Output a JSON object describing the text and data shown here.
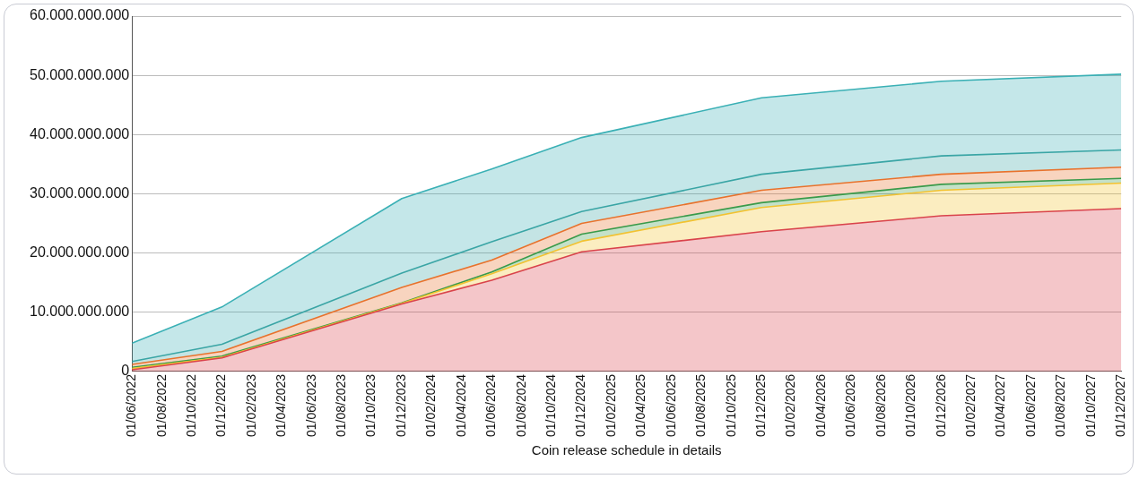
{
  "chart_data": {
    "type": "area",
    "xlabel": "Coin release schedule in details",
    "x": [
      "2022-06",
      "2022-12",
      "2023-12",
      "2024-06",
      "2024-12",
      "2025-12",
      "2026-12",
      "2027-12"
    ],
    "series": [
      {
        "color": "#d9434b",
        "values": [
          300000000,
          2300000000,
          11400000000,
          15400000000,
          20200000000,
          23600000000,
          26300000000,
          27500000000
        ]
      },
      {
        "color": "#f2c230",
        "values": [
          500000000,
          2400000000,
          11500000000,
          16500000000,
          22000000000,
          27700000000,
          30600000000,
          31800000000
        ]
      },
      {
        "color": "#3a9a4a",
        "values": [
          700000000,
          2600000000,
          11600000000,
          16800000000,
          23200000000,
          28500000000,
          31600000000,
          32600000000
        ]
      },
      {
        "color": "#e8722c",
        "values": [
          1200000000,
          3400000000,
          14200000000,
          18800000000,
          25000000000,
          30600000000,
          33300000000,
          34500000000
        ]
      },
      {
        "color": "#3aa5a5",
        "values": [
          1700000000,
          4600000000,
          16600000000,
          21900000000,
          27000000000,
          33300000000,
          36400000000,
          37400000000
        ]
      },
      {
        "color": "#3ab0b5",
        "values": [
          4800000000,
          10900000000,
          29200000000,
          34200000000,
          39500000000,
          46200000000,
          49000000000,
          50200000000
        ]
      }
    ],
    "xlim": [
      "2022-06",
      "2027-12"
    ],
    "xticks": [
      {
        "value": "2022-06",
        "label": "01/06/2022"
      },
      {
        "value": "2022-08",
        "label": "01/08/2022"
      },
      {
        "value": "2022-10",
        "label": "01/10/2022"
      },
      {
        "value": "2022-12",
        "label": "01/12/2022"
      },
      {
        "value": "2023-02",
        "label": "01/02/2023"
      },
      {
        "value": "2023-04",
        "label": "01/04/2023"
      },
      {
        "value": "2023-06",
        "label": "01/06/2023"
      },
      {
        "value": "2023-08",
        "label": "01/08/2023"
      },
      {
        "value": "2023-10",
        "label": "01/10/2023"
      },
      {
        "value": "2023-12",
        "label": "01/12/2023"
      },
      {
        "value": "2024-02",
        "label": "01/02/2024"
      },
      {
        "value": "2024-04",
        "label": "01/04/2024"
      },
      {
        "value": "2024-06",
        "label": "01/06/2024"
      },
      {
        "value": "2024-08",
        "label": "01/08/2024"
      },
      {
        "value": "2024-10",
        "label": "01/10/2024"
      },
      {
        "value": "2024-12",
        "label": "01/12/2024"
      },
      {
        "value": "2025-02",
        "label": "01/02/2025"
      },
      {
        "value": "2025-04",
        "label": "01/04/2025"
      },
      {
        "value": "2025-06",
        "label": "01/06/2025"
      },
      {
        "value": "2025-08",
        "label": "01/08/2025"
      },
      {
        "value": "2025-10",
        "label": "01/10/2025"
      },
      {
        "value": "2025-12",
        "label": "01/12/2025"
      },
      {
        "value": "2026-02",
        "label": "01/02/2026"
      },
      {
        "value": "2026-04",
        "label": "01/04/2026"
      },
      {
        "value": "2026-06",
        "label": "01/06/2026"
      },
      {
        "value": "2026-08",
        "label": "01/08/2026"
      },
      {
        "value": "2026-10",
        "label": "01/10/2026"
      },
      {
        "value": "2026-12",
        "label": "01/12/2026"
      },
      {
        "value": "2027-02",
        "label": "01/02/2027"
      },
      {
        "value": "2027-04",
        "label": "01/04/2027"
      },
      {
        "value": "2027-06",
        "label": "01/06/2027"
      },
      {
        "value": "2027-08",
        "label": "01/08/2027"
      },
      {
        "value": "2027-10",
        "label": "01/10/2027"
      },
      {
        "value": "2027-12",
        "label": "01/12/2027"
      }
    ],
    "ylim": [
      0,
      60000000000
    ],
    "yticks": [
      {
        "value": 0,
        "label": "0"
      },
      {
        "value": 10000000000,
        "label": "10.000.000.000"
      },
      {
        "value": 20000000000,
        "label": "20.000.000.000"
      },
      {
        "value": 30000000000,
        "label": "30.000.000.000"
      },
      {
        "value": 40000000000,
        "label": "40.000.000.000"
      },
      {
        "value": 50000000000,
        "label": "50.000.000.000"
      },
      {
        "value": 60000000000,
        "label": "60.000.000.000"
      }
    ],
    "grid": "y",
    "legend": false,
    "marker": "none",
    "line_style": "solid"
  }
}
